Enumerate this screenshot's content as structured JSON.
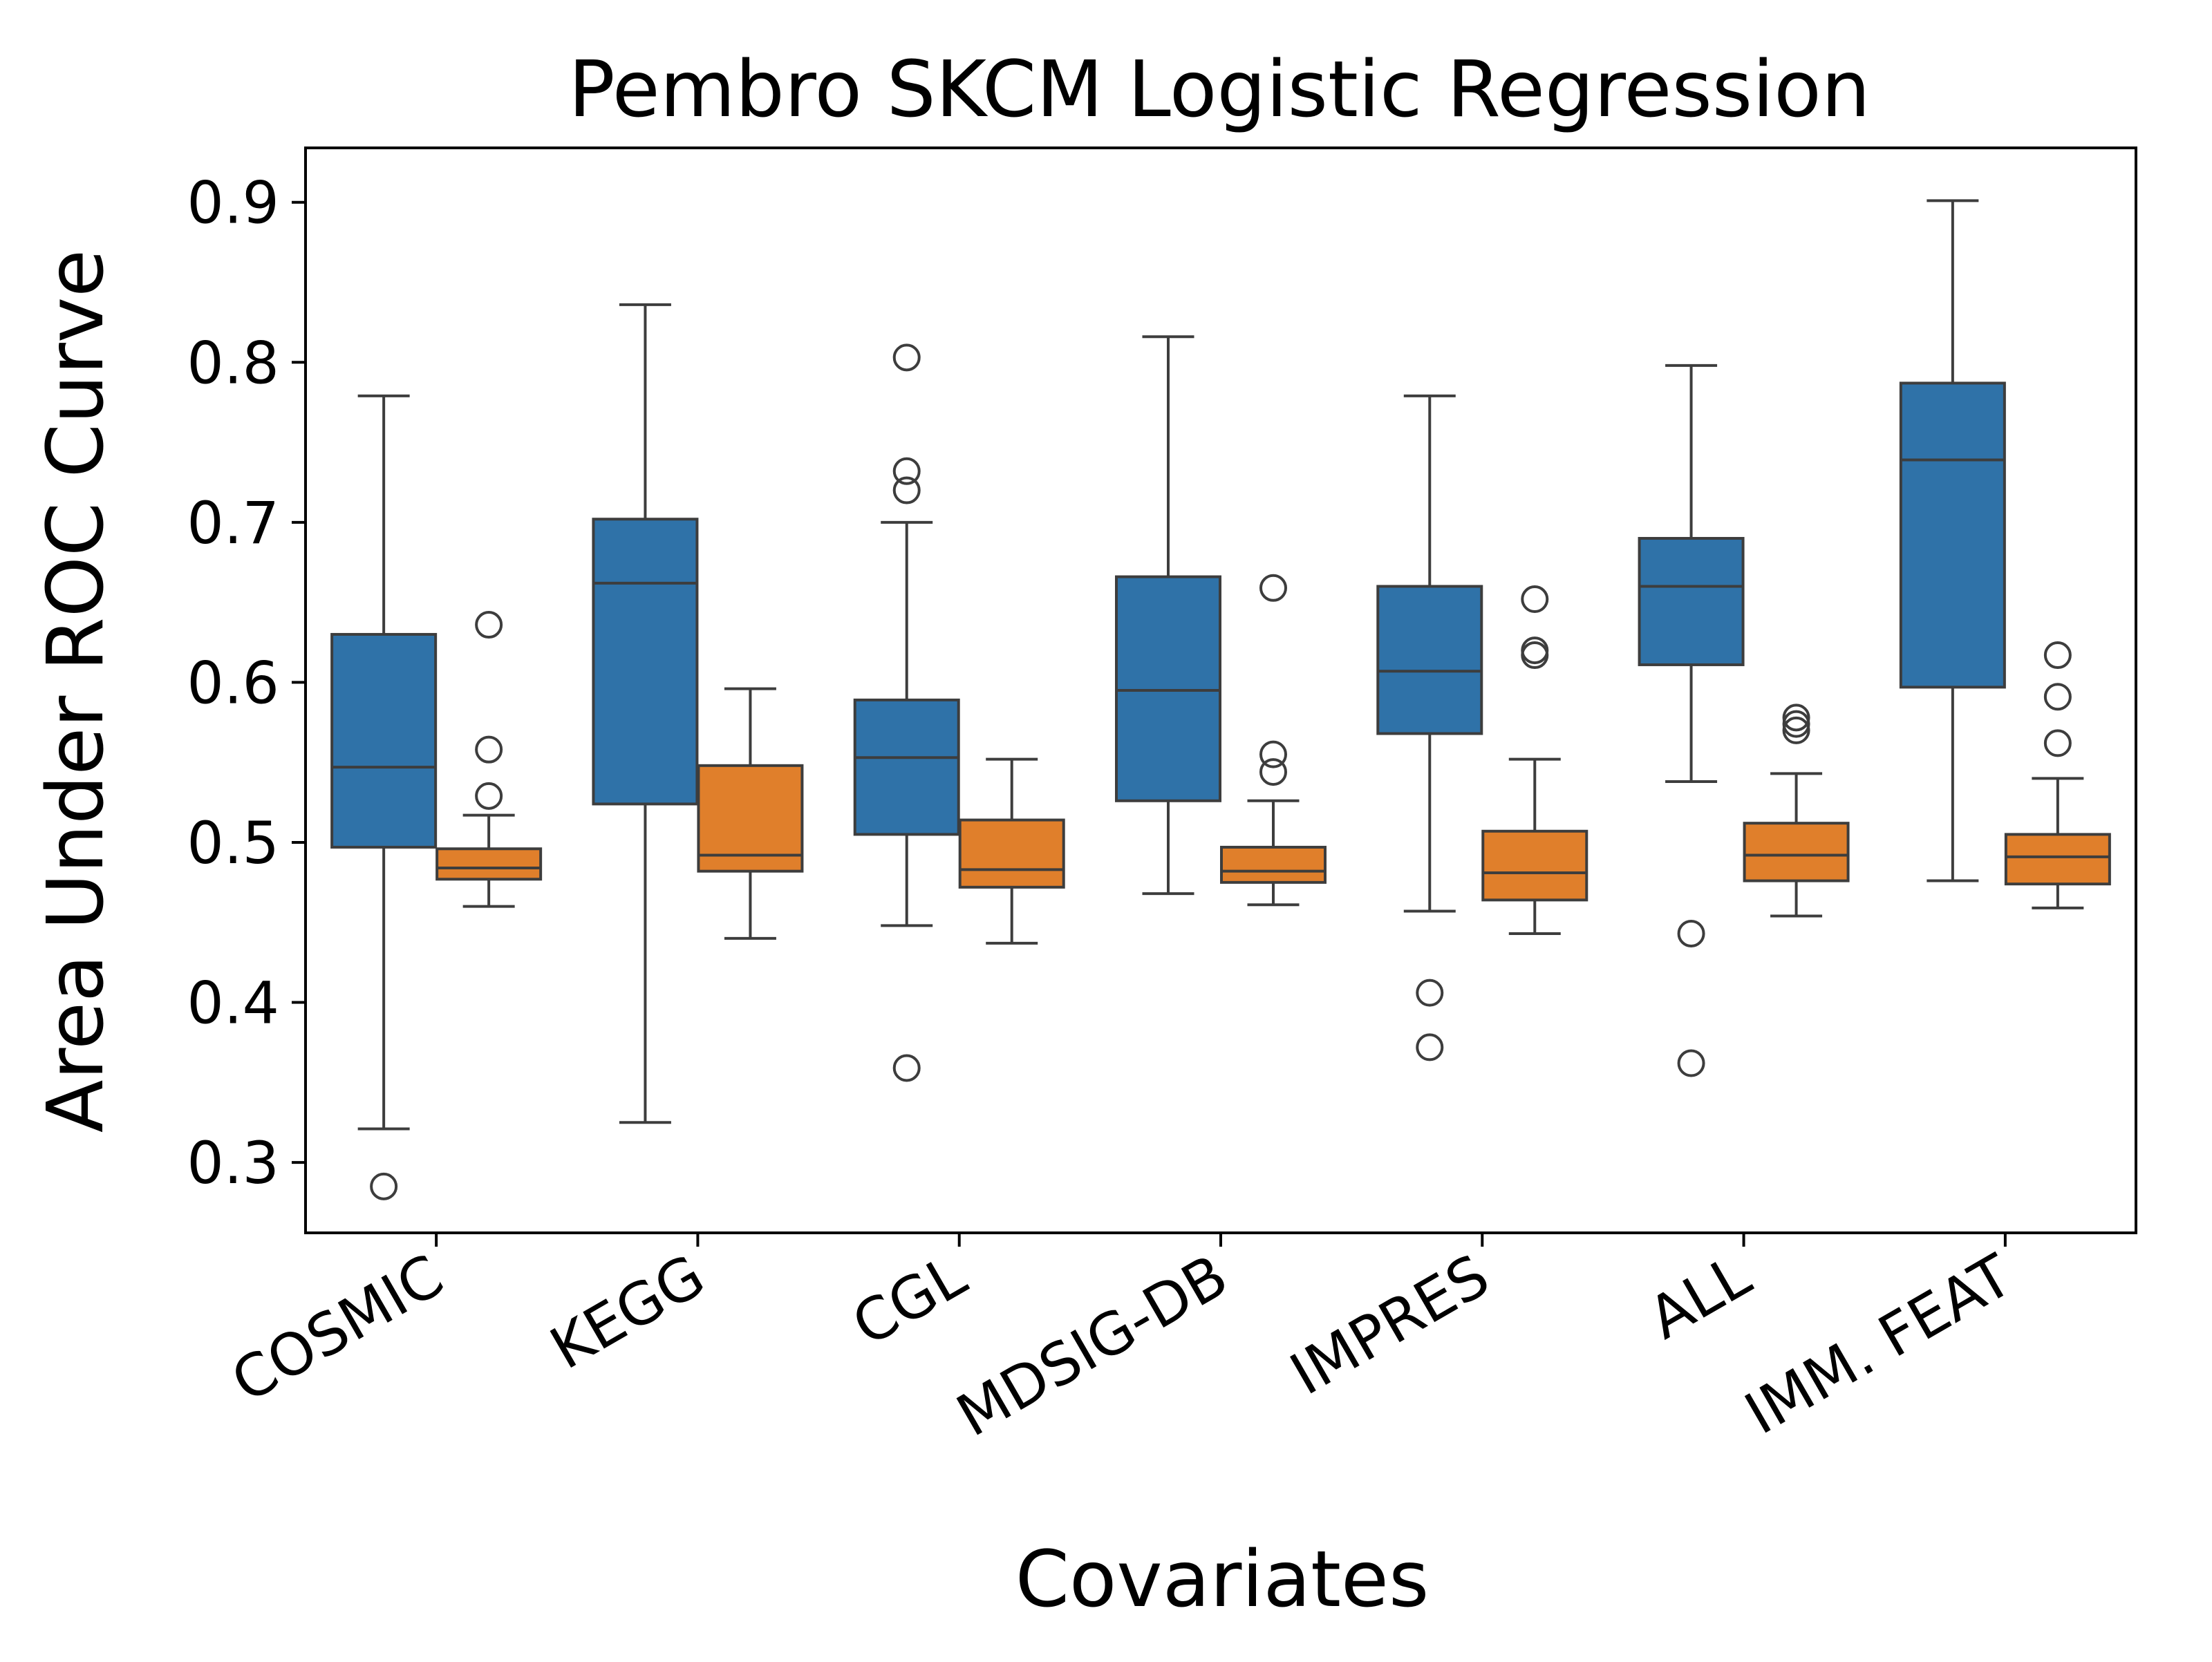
{
  "chart_data": {
    "type": "box",
    "title": "Pembro  SKCM  Logistic Regression",
    "xlabel": "Covariates",
    "ylabel": "Area Under ROC Curve",
    "ylim": [
      0.256,
      0.934
    ],
    "yticks": [
      "0.3",
      "0.4",
      "0.5",
      "0.6",
      "0.7",
      "0.8",
      "0.9"
    ],
    "ytick_values": [
      0.3,
      0.4,
      0.5,
      0.6,
      0.7,
      0.8,
      0.9
    ],
    "categories": [
      "COSMIC",
      "KEGG",
      "CGL",
      "MDSIG-DB",
      "IMPRES",
      "ALL",
      "IMM. FEAT"
    ],
    "colors": {
      "blue": "#2f72a8",
      "orange": "#e07f2b",
      "edge": "#3d3d3d"
    },
    "grid": false,
    "series": [
      {
        "color": "#2f72a8",
        "boxes": [
          {
            "whislo": 0.321,
            "q1": 0.497,
            "med": 0.547,
            "q3": 0.63,
            "whishi": 0.779,
            "fliers": [
              0.285
            ]
          },
          {
            "whislo": 0.325,
            "q1": 0.524,
            "med": 0.662,
            "q3": 0.702,
            "whishi": 0.836,
            "fliers": []
          },
          {
            "whislo": 0.448,
            "q1": 0.505,
            "med": 0.553,
            "q3": 0.589,
            "whishi": 0.7,
            "fliers": [
              0.803,
              0.732,
              0.72,
              0.359
            ]
          },
          {
            "whislo": 0.468,
            "q1": 0.526,
            "med": 0.595,
            "q3": 0.666,
            "whishi": 0.816,
            "fliers": []
          },
          {
            "whislo": 0.457,
            "q1": 0.568,
            "med": 0.607,
            "q3": 0.66,
            "whishi": 0.779,
            "fliers": [
              0.406,
              0.372
            ]
          },
          {
            "whislo": 0.538,
            "q1": 0.611,
            "med": 0.66,
            "q3": 0.69,
            "whishi": 0.798,
            "fliers": [
              0.443,
              0.362
            ]
          },
          {
            "whislo": 0.476,
            "q1": 0.597,
            "med": 0.739,
            "q3": 0.787,
            "whishi": 0.901,
            "fliers": []
          }
        ]
      },
      {
        "color": "#e07f2b",
        "boxes": [
          {
            "whislo": 0.46,
            "q1": 0.477,
            "med": 0.484,
            "q3": 0.496,
            "whishi": 0.517,
            "fliers": [
              0.636,
              0.558,
              0.529
            ]
          },
          {
            "whislo": 0.44,
            "q1": 0.482,
            "med": 0.492,
            "q3": 0.548,
            "whishi": 0.596,
            "fliers": []
          },
          {
            "whislo": 0.437,
            "q1": 0.472,
            "med": 0.483,
            "q3": 0.514,
            "whishi": 0.552,
            "fliers": []
          },
          {
            "whislo": 0.461,
            "q1": 0.475,
            "med": 0.482,
            "q3": 0.497,
            "whishi": 0.526,
            "fliers": [
              0.659,
              0.555,
              0.544
            ]
          },
          {
            "whislo": 0.443,
            "q1": 0.464,
            "med": 0.481,
            "q3": 0.507,
            "whishi": 0.552,
            "fliers": [
              0.652,
              0.62,
              0.617
            ]
          },
          {
            "whislo": 0.454,
            "q1": 0.476,
            "med": 0.492,
            "q3": 0.512,
            "whishi": 0.543,
            "fliers": [
              0.578,
              0.574,
              0.57
            ]
          },
          {
            "whislo": 0.459,
            "q1": 0.474,
            "med": 0.491,
            "q3": 0.505,
            "whishi": 0.54,
            "fliers": [
              0.617,
              0.591,
              0.562
            ]
          }
        ]
      }
    ]
  }
}
